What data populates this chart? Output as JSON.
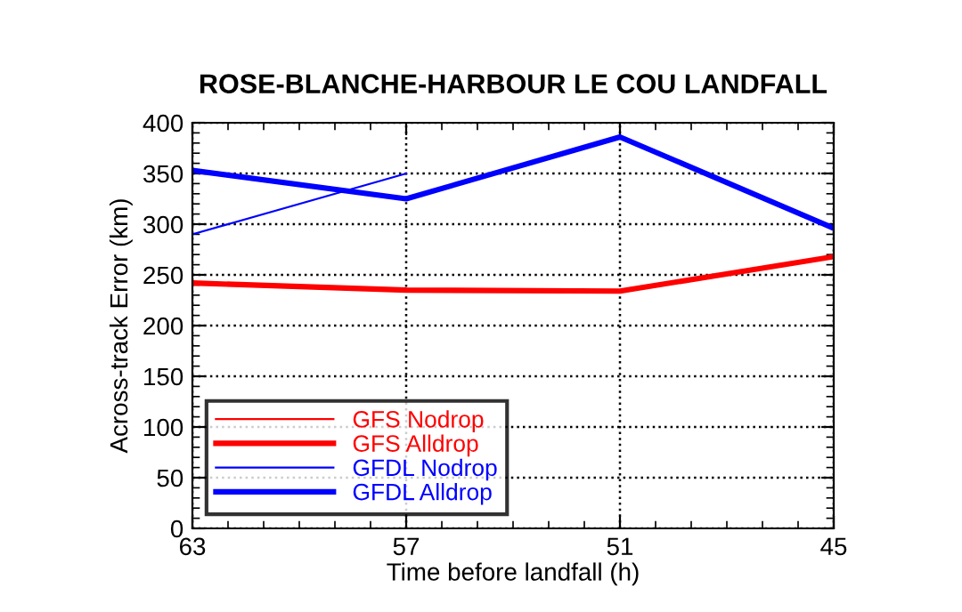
{
  "chart_data": {
    "type": "line",
    "title": "ROSE-BLANCHE-HARBOUR LE COU LANDFALL",
    "xlabel": "Time before landfall (h)",
    "ylabel": "Across-track Error (km)",
    "x": [
      63,
      57,
      51,
      45
    ],
    "xlim": [
      63,
      45
    ],
    "xticks": [
      63,
      57,
      51,
      45
    ],
    "ylim": [
      0,
      400
    ],
    "yticks": [
      0,
      50,
      100,
      150,
      200,
      250,
      300,
      350,
      400
    ],
    "grid": true,
    "legend": "bottom left",
    "marker": "none",
    "line_style": "solid",
    "series": [
      {
        "name": "GFS Nodrop",
        "color": "#ff0000",
        "values": [
          null,
          null,
          null,
          null
        ]
      },
      {
        "name": "GFS Alldrop",
        "color": "#ff0000",
        "values": [
          242,
          235,
          234,
          268
        ]
      },
      {
        "name": "GFDL Nodrop",
        "color": "#0000ff",
        "values": [
          290,
          350,
          null,
          null
        ]
      },
      {
        "name": "GFDL Alldrop",
        "color": "#0000ff",
        "values": [
          353,
          325,
          386,
          296
        ]
      }
    ]
  }
}
